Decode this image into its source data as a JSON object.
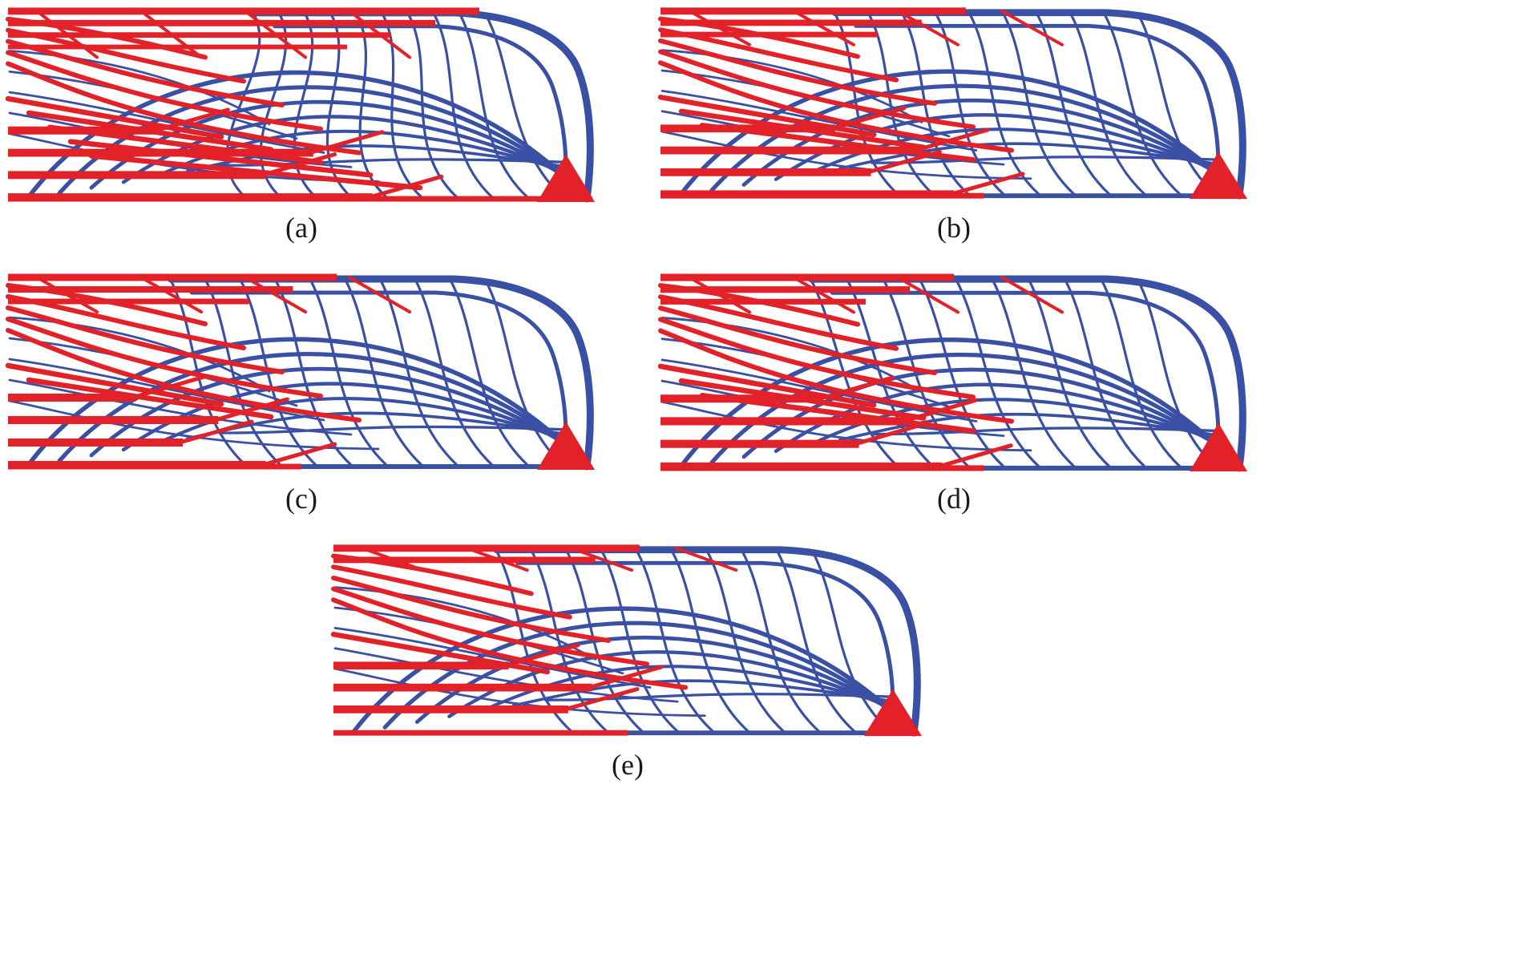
{
  "figure": {
    "type": "topology-optimization-results",
    "background": "#ffffff",
    "colors": {
      "red": "#e32128",
      "blue": "#3a50a4"
    },
    "panels": [
      {
        "id": "a",
        "label": "(a)",
        "structure": {
          "blueTopStart": 0.42,
          "topRedRows": 4,
          "topRedExtent": 0.8,
          "midRedDiagonals": 5,
          "bottomRedLens": [
            0.26,
            0.52,
            0.44,
            0.62
          ],
          "bottomChordRedEnd": 0.99
        }
      },
      {
        "id": "b",
        "label": "(b)",
        "structure": {
          "blueTopStart": 0.3,
          "topRedRows": 3,
          "topRedExtent": 0.52,
          "midRedDiagonals": 3,
          "bottomRedLens": [
            0.3,
            0.44,
            0.36,
            0.5
          ],
          "bottomChordRedEnd": 0.55
        }
      },
      {
        "id": "c",
        "label": "(c)",
        "structure": {
          "blueTopStart": 0.28,
          "topRedRows": 3,
          "topRedExtent": 0.56,
          "midRedDiagonals": 2,
          "bottomRedLens": [
            0.22,
            0.36,
            0.3,
            0.44
          ],
          "bottomChordRedEnd": 0.5
        }
      },
      {
        "id": "d",
        "label": "(d)",
        "structure": {
          "blueTopStart": 0.26,
          "topRedRows": 3,
          "topRedExtent": 0.5,
          "midRedDiagonals": 3,
          "bottomRedLens": [
            0.28,
            0.42,
            0.34,
            0.48
          ],
          "bottomChordRedEnd": 0.55
        }
      },
      {
        "id": "e",
        "label": "(e)",
        "structure": {
          "blueTopStart": 0.28,
          "topRedRows": 2,
          "topRedExtent": 0.52,
          "midRedDiagonals": 1,
          "bottomRedLens": [
            0.3,
            0.44,
            0.4
          ],
          "bottomChordRedEnd": 0.5
        }
      }
    ]
  }
}
